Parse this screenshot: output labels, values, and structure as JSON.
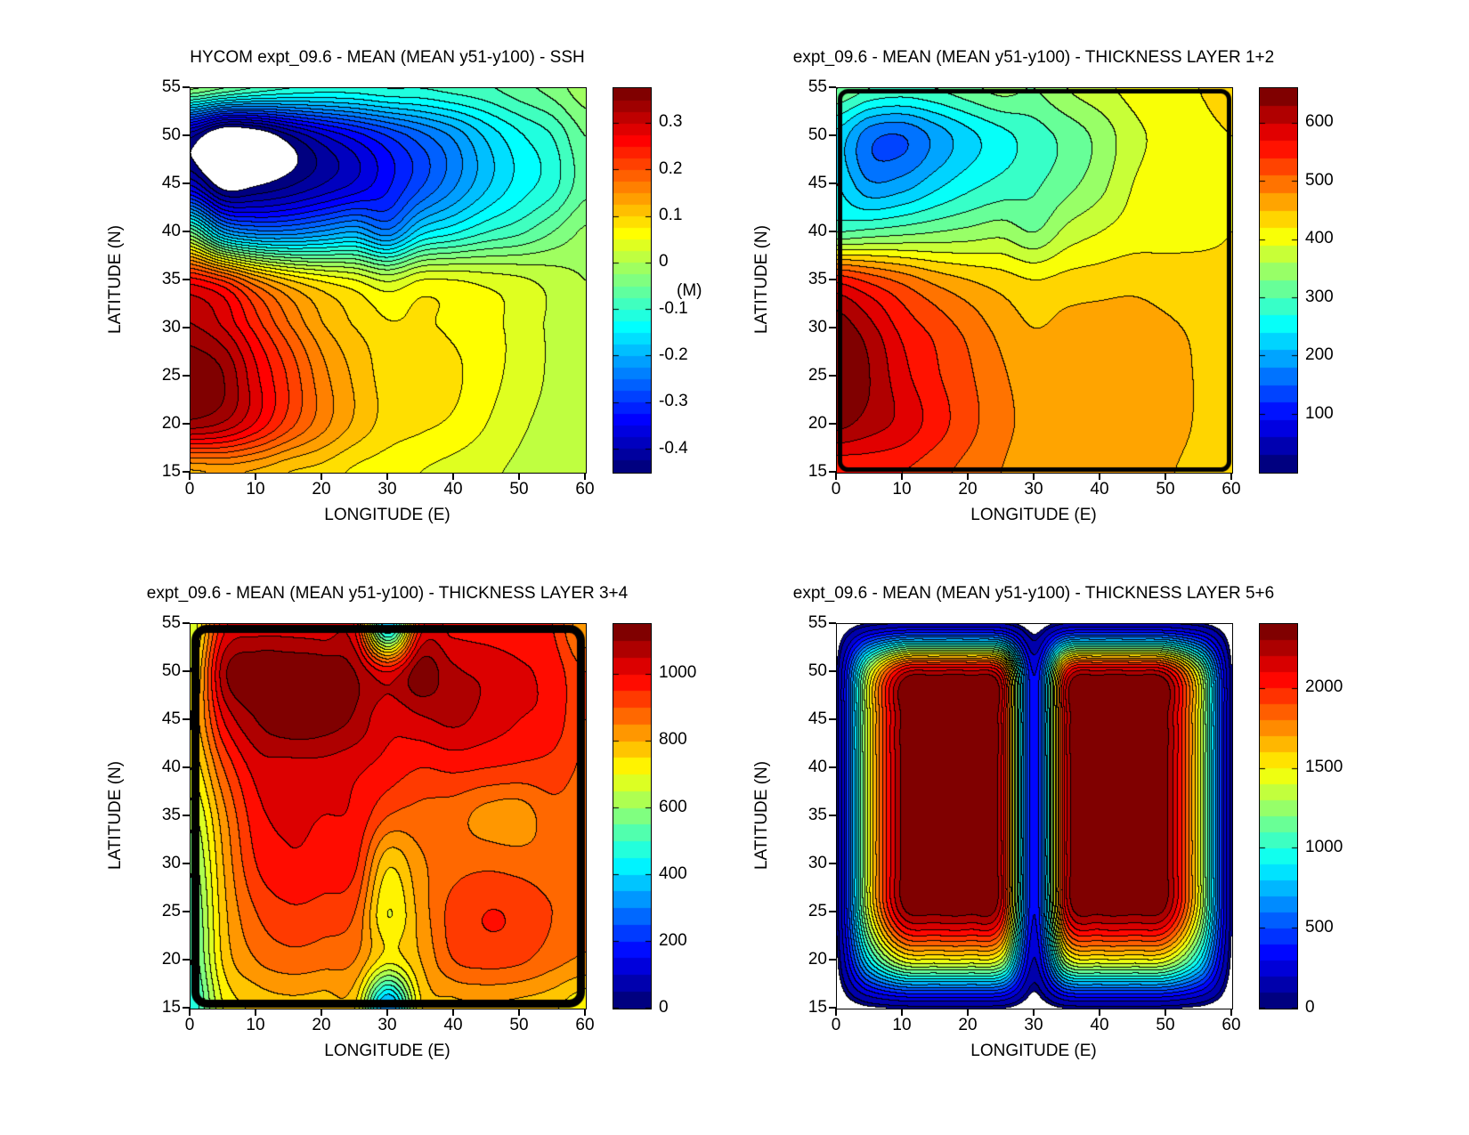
{
  "figure": {
    "background": "#ffffff",
    "colormap": "jet",
    "text_color": "#000000"
  },
  "chart_data": [
    {
      "id": "ssh",
      "type": "filled-contour",
      "title": "HYCOM expt_09.6 - MEAN (MEAN y51-y100) - SSH",
      "xlabel": "LONGITUDE (E)",
      "ylabel": "LATITUDE (N)",
      "x_range": [
        0,
        60
      ],
      "y_range": [
        15,
        55
      ],
      "x_ticks": [
        0,
        10,
        20,
        30,
        40,
        50,
        60
      ],
      "y_ticks": [
        15,
        20,
        25,
        30,
        35,
        40,
        45,
        50,
        55
      ],
      "caxis": [
        -0.45,
        0.375
      ],
      "contour_step": 0.025,
      "white_below": -0.45,
      "border_px": 0,
      "border_radius": 0,
      "colorbar": {
        "label": "(M)",
        "ticks": [
          0.3,
          0.2,
          0.1,
          0,
          -0.1,
          -0.2,
          -0.3,
          -0.4
        ],
        "tick_labels": [
          "0.3",
          "0.2",
          "0.1",
          "0",
          "-0.1",
          "-0.2",
          "-0.3",
          "-0.4"
        ]
      },
      "grid": {
        "lons": [
          0,
          5,
          10,
          15,
          20,
          25,
          30,
          35,
          40,
          45,
          50,
          55,
          60
        ],
        "lats": [
          55,
          50,
          45,
          40,
          35,
          30,
          25,
          20,
          15
        ],
        "values": [
          [
            -0.02,
            -0.05,
            -0.08,
            -0.1,
            -0.11,
            -0.11,
            -0.1,
            -0.1,
            -0.09,
            -0.08,
            -0.06,
            -0.04,
            -0.01
          ],
          [
            -0.42,
            -0.51,
            -0.49,
            -0.43,
            -0.38,
            -0.34,
            -0.3,
            -0.26,
            -0.22,
            -0.17,
            -0.13,
            -0.1,
            -0.05
          ],
          [
            -0.38,
            -0.47,
            -0.455,
            -0.43,
            -0.4,
            -0.37,
            -0.33,
            -0.28,
            -0.23,
            -0.18,
            -0.14,
            -0.11,
            -0.06
          ],
          [
            -0.05,
            -0.2,
            -0.24,
            -0.24,
            -0.22,
            -0.2,
            -0.24,
            -0.16,
            -0.13,
            -0.1,
            -0.08,
            -0.05,
            -0.02
          ],
          [
            0.26,
            0.22,
            0.15,
            0.1,
            0.07,
            0.05,
            0.02,
            0.05,
            0.05,
            0.04,
            0.03,
            0.015,
            0.0
          ],
          [
            0.33,
            0.3,
            0.24,
            0.18,
            0.13,
            0.1,
            0.08,
            0.08,
            0.07,
            0.06,
            0.04,
            0.02,
            0.0
          ],
          [
            0.37,
            0.35,
            0.28,
            0.22,
            0.16,
            0.12,
            0.09,
            0.09,
            0.08,
            0.06,
            0.04,
            0.02,
            0.0
          ],
          [
            0.34,
            0.32,
            0.27,
            0.21,
            0.16,
            0.12,
            0.09,
            0.08,
            0.07,
            0.05,
            0.03,
            0.015,
            0.0
          ],
          [
            0.12,
            0.13,
            0.12,
            0.1,
            0.09,
            0.07,
            0.06,
            0.05,
            0.04,
            0.03,
            0.02,
            0.01,
            0.0
          ]
        ]
      }
    },
    {
      "id": "thickness-layer-1-2",
      "type": "filled-contour",
      "title": "expt_09.6 - MEAN (MEAN y51-y100) - THICKNESS LAYER 1+2",
      "xlabel": "LONGITUDE (E)",
      "ylabel": "LATITUDE (N)",
      "x_range": [
        0,
        60
      ],
      "y_range": [
        15,
        55
      ],
      "x_ticks": [
        0,
        10,
        20,
        30,
        40,
        50,
        60
      ],
      "y_ticks": [
        15,
        20,
        25,
        30,
        35,
        40,
        45,
        50,
        55
      ],
      "caxis": [
        0,
        660
      ],
      "contour_step": 30,
      "border_px": 5,
      "border_radius": 9,
      "colorbar": {
        "label": "",
        "ticks": [
          600,
          500,
          400,
          300,
          200,
          100
        ],
        "tick_labels": [
          "600",
          "500",
          "400",
          "300",
          "200",
          "100"
        ]
      },
      "grid": {
        "lons": [
          0,
          5,
          10,
          15,
          20,
          25,
          30,
          35,
          40,
          45,
          50,
          55,
          60
        ],
        "lats": [
          55,
          50,
          45,
          40,
          35,
          30,
          25,
          20,
          15
        ],
        "values": [
          [
            330,
            300,
            290,
            300,
            320,
            340,
            330,
            360,
            380,
            400,
            415,
            420,
            425
          ],
          [
            230,
            160,
            150,
            190,
            230,
            260,
            285,
            310,
            340,
            380,
            400,
            415,
            420
          ],
          [
            240,
            185,
            195,
            230,
            260,
            280,
            295,
            320,
            350,
            390,
            405,
            415,
            420
          ],
          [
            300,
            310,
            320,
            330,
            340,
            350,
            330,
            370,
            390,
            405,
            410,
            415,
            420
          ],
          [
            560,
            530,
            500,
            470,
            450,
            435,
            420,
            430,
            435,
            440,
            435,
            430,
            425
          ],
          [
            650,
            610,
            560,
            530,
            500,
            470,
            450,
            460,
            465,
            465,
            455,
            445,
            435
          ],
          [
            665,
            630,
            580,
            545,
            515,
            485,
            465,
            470,
            475,
            470,
            460,
            448,
            438
          ],
          [
            640,
            615,
            590,
            555,
            520,
            490,
            470,
            475,
            475,
            470,
            458,
            448,
            438
          ],
          [
            540,
            545,
            540,
            520,
            500,
            480,
            460,
            465,
            465,
            460,
            452,
            445,
            438
          ]
        ]
      }
    },
    {
      "id": "thickness-layer-3-4",
      "type": "filled-contour",
      "title": "expt_09.6 - MEAN (MEAN y51-y100) - THICKNESS LAYER 3+4",
      "xlabel": "LONGITUDE (E)",
      "ylabel": "LATITUDE (N)",
      "x_range": [
        0,
        60
      ],
      "y_range": [
        15,
        55
      ],
      "x_ticks": [
        0,
        10,
        20,
        30,
        40,
        50,
        60
      ],
      "y_ticks": [
        15,
        20,
        25,
        30,
        35,
        40,
        45,
        50,
        55
      ],
      "caxis": [
        0,
        1150
      ],
      "contour_step": 50,
      "border_px": 9,
      "border_radius": 13,
      "colorbar": {
        "label": "",
        "ticks": [
          1000,
          800,
          600,
          400,
          200,
          0
        ],
        "tick_labels": [
          "1000",
          "800",
          "600",
          "400",
          "200",
          "0"
        ]
      },
      "grid": {
        "lons": [
          0,
          5,
          10,
          15,
          20,
          25,
          30,
          35,
          40,
          45,
          50,
          55,
          60
        ],
        "lats": [
          55,
          50,
          45,
          40,
          35,
          30,
          25,
          20,
          15
        ],
        "values": [
          [
            650,
            980,
            1020,
            1020,
            1010,
            990,
            350,
            970,
            980,
            970,
            960,
            950,
            800
          ],
          [
            700,
            1080,
            1150,
            1150,
            1140,
            1100,
            1000,
            1130,
            1060,
            1040,
            1010,
            980,
            900
          ],
          [
            750,
            1000,
            1100,
            1140,
            1130,
            1090,
            1010,
            1040,
            1060,
            1030,
            1000,
            980,
            900
          ],
          [
            700,
            900,
            1020,
            1030,
            1030,
            1010,
            980,
            950,
            960,
            950,
            940,
            930,
            890
          ],
          [
            620,
            830,
            980,
            1010,
            1000,
            990,
            900,
            880,
            870,
            830,
            820,
            880,
            870
          ],
          [
            560,
            800,
            950,
            990,
            980,
            960,
            760,
            840,
            880,
            890,
            880,
            870,
            860
          ],
          [
            520,
            780,
            900,
            940,
            930,
            900,
            700,
            820,
            920,
            950,
            940,
            900,
            860
          ],
          [
            500,
            760,
            850,
            880,
            870,
            850,
            720,
            800,
            900,
            920,
            910,
            870,
            840
          ],
          [
            450,
            700,
            760,
            780,
            770,
            750,
            300,
            740,
            780,
            790,
            780,
            760,
            700
          ]
        ]
      }
    },
    {
      "id": "thickness-layer-5-6",
      "type": "filled-contour",
      "title": "expt_09.6 - MEAN (MEAN y51-y100) - THICKNESS LAYER 5+6",
      "xlabel": "LONGITUDE (E)",
      "ylabel": "LATITUDE (N)",
      "x_range": [
        0,
        60
      ],
      "y_range": [
        15,
        55
      ],
      "x_ticks": [
        0,
        10,
        20,
        30,
        40,
        50,
        60
      ],
      "y_ticks": [
        15,
        20,
        25,
        30,
        35,
        40,
        45,
        50,
        55
      ],
      "caxis": [
        0,
        2400
      ],
      "contour_step": 100,
      "white_below": 60,
      "border_px": 0,
      "border_radius": 0,
      "colorbar": {
        "label": "",
        "ticks": [
          2000,
          1500,
          1000,
          500,
          0
        ],
        "tick_labels": [
          "2000",
          "1500",
          "1000",
          "500",
          "0"
        ]
      },
      "grid": {
        "lons": [
          0,
          5,
          10,
          15,
          20,
          25,
          30,
          35,
          40,
          45,
          50,
          55,
          60
        ],
        "lats": [
          55,
          50,
          45,
          40,
          35,
          30,
          25,
          20,
          15
        ],
        "values": [
          [
            4,
            74,
            116,
            120,
            120,
            110,
            16,
            110,
            120,
            120,
            116,
            74,
            4
          ],
          [
            67,
            1384,
            2165,
            2232,
            2232,
            2053,
            290,
            2053,
            2232,
            2232,
            2165,
            1384,
            67
          ],
          [
            72,
            1488,
            2328,
            2400,
            2400,
            2208,
            312,
            2208,
            2400,
            2400,
            2328,
            1488,
            72
          ],
          [
            72,
            1488,
            2328,
            2400,
            2400,
            2208,
            312,
            2208,
            2400,
            2400,
            2328,
            1488,
            72
          ],
          [
            72,
            1488,
            2328,
            2400,
            2400,
            2208,
            312,
            2208,
            2400,
            2400,
            2328,
            1488,
            72
          ],
          [
            72,
            1488,
            2328,
            2400,
            2400,
            2208,
            312,
            2208,
            2400,
            2400,
            2328,
            1488,
            72
          ],
          [
            70,
            1443,
            2258,
            2328,
            2328,
            2142,
            303,
            2142,
            2328,
            2328,
            2258,
            1443,
            70
          ],
          [
            45,
            923,
            1443,
            1488,
            1488,
            1369,
            193,
            1369,
            1488,
            1488,
            1443,
            923,
            45
          ],
          [
            2,
            45,
            70,
            72,
            72,
            66,
            9,
            66,
            72,
            72,
            70,
            45,
            2
          ]
        ]
      }
    }
  ]
}
